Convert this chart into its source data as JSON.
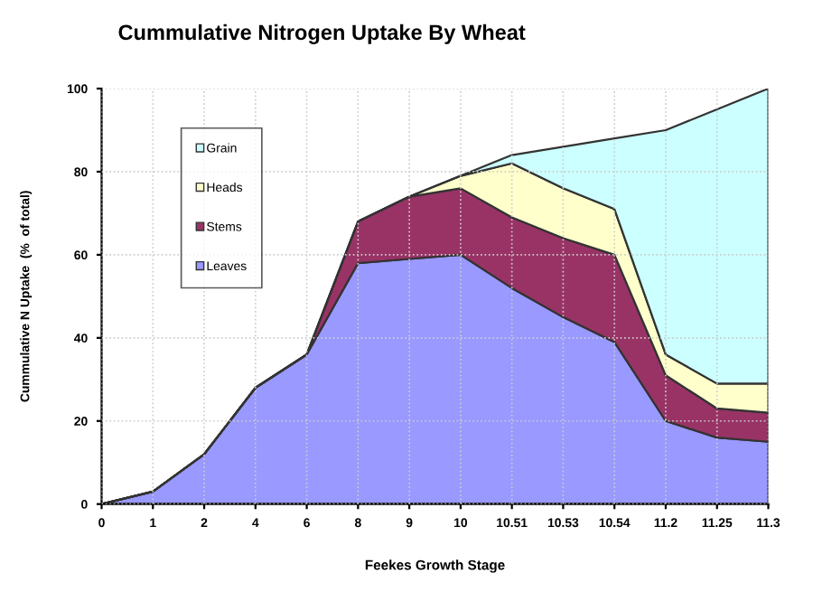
{
  "chart_data": {
    "type": "area",
    "stacked": true,
    "title": "Cummulative Nitrogen Uptake By Wheat",
    "xlabel": "Feekes Growth Stage",
    "ylabel": "Cummulative N Uptake  (%  of total)",
    "categories": [
      "0",
      "1",
      "2",
      "4",
      "6",
      "8",
      "9",
      "10",
      "10.51",
      "10.53",
      "10.54",
      "11.2",
      "11.25",
      "11.3"
    ],
    "series": [
      {
        "name": "Leaves",
        "color": "#9999ff",
        "values": [
          0,
          3,
          12,
          28,
          36,
          58,
          59,
          60,
          52,
          45,
          39,
          20,
          16,
          15
        ]
      },
      {
        "name": "Stems",
        "color": "#993366",
        "values": [
          0,
          0,
          0,
          0,
          0,
          10,
          15,
          16,
          17,
          19,
          21,
          11,
          7,
          7
        ]
      },
      {
        "name": "Heads",
        "color": "#ffffcc",
        "values": [
          0,
          0,
          0,
          0,
          0,
          0,
          0,
          3,
          13,
          12,
          11,
          5,
          6,
          7
        ]
      },
      {
        "name": "Grain",
        "color": "#ccffff",
        "values": [
          0,
          0,
          0,
          0,
          0,
          0,
          0,
          0,
          2,
          10,
          17,
          54,
          66,
          71
        ]
      }
    ],
    "ylim": [
      0,
      100
    ],
    "yticks": [
      0,
      20,
      40,
      60,
      80,
      100
    ],
    "grid": true,
    "legend": "top left"
  }
}
